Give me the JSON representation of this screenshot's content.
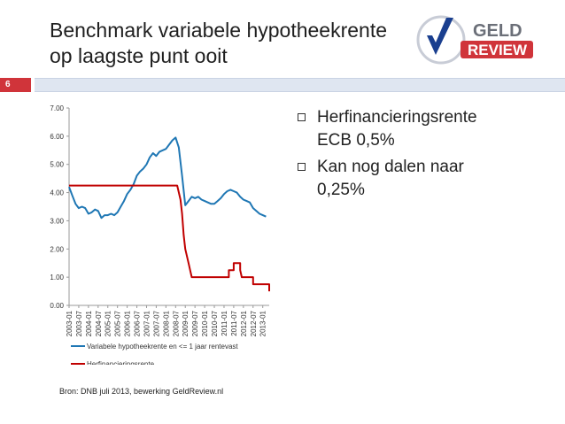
{
  "slide": {
    "title_line1": "Benchmark variabele hypotheekrente",
    "title_line2": "op laagste punt ooit",
    "number": "6",
    "source": "Bron: DNB juli 2013, bewerking GeldReview.nl",
    "bullets": [
      {
        "line1": "Herfinancieringsrente",
        "line2": "ECB 0,5%"
      },
      {
        "line1": "Kan nog dalen naar",
        "line2": "0,25%"
      }
    ]
  },
  "logo": {
    "top_text": "GELD",
    "bottom_text": "REVIEW",
    "accent": "#d0343a",
    "check_color": "#1a3f8f",
    "icon": "checkmark-icon"
  },
  "colors": {
    "series_blue": "#1f77b4",
    "series_red": "#c00000",
    "band_red": "#d0343a",
    "band_blue": "#dfe6f1"
  },
  "chart_data": {
    "type": "line",
    "ylim": [
      0,
      7
    ],
    "y_ticks": [
      "0.00",
      "1.00",
      "2.00",
      "3.00",
      "4.00",
      "5.00",
      "6.00",
      "7.00"
    ],
    "x_ticks": [
      "2003-01",
      "2003-07",
      "2004-01",
      "2004-07",
      "2005-01",
      "2005-07",
      "2006-01",
      "2006-07",
      "2007-01",
      "2007-07",
      "2008-01",
      "2008-07",
      "2009-01",
      "2009-07",
      "2010-01",
      "2010-07",
      "2011-01",
      "2011-07",
      "2012-01",
      "2012-07",
      "2013-01"
    ],
    "legend_placement": "bottom",
    "series": [
      {
        "name": "Variabele hypotheekrente en <= 1 jaar rentevast",
        "color": "#1f77b4",
        "points": [
          [
            "2003-01",
            4.2
          ],
          [
            "2003-03",
            3.9
          ],
          [
            "2003-05",
            3.6
          ],
          [
            "2003-07",
            3.45
          ],
          [
            "2003-09",
            3.5
          ],
          [
            "2003-11",
            3.45
          ],
          [
            "2004-01",
            3.25
          ],
          [
            "2004-03",
            3.3
          ],
          [
            "2004-05",
            3.4
          ],
          [
            "2004-07",
            3.35
          ],
          [
            "2004-09",
            3.1
          ],
          [
            "2004-11",
            3.2
          ],
          [
            "2005-01",
            3.2
          ],
          [
            "2005-03",
            3.25
          ],
          [
            "2005-05",
            3.2
          ],
          [
            "2005-07",
            3.3
          ],
          [
            "2005-09",
            3.5
          ],
          [
            "2005-11",
            3.7
          ],
          [
            "2006-01",
            3.95
          ],
          [
            "2006-03",
            4.1
          ],
          [
            "2006-05",
            4.3
          ],
          [
            "2006-07",
            4.6
          ],
          [
            "2006-09",
            4.75
          ],
          [
            "2006-11",
            4.85
          ],
          [
            "2007-01",
            5.0
          ],
          [
            "2007-03",
            5.25
          ],
          [
            "2007-05",
            5.4
          ],
          [
            "2007-07",
            5.3
          ],
          [
            "2007-09",
            5.45
          ],
          [
            "2007-11",
            5.5
          ],
          [
            "2008-01",
            5.55
          ],
          [
            "2008-03",
            5.7
          ],
          [
            "2008-05",
            5.85
          ],
          [
            "2008-07",
            5.95
          ],
          [
            "2008-09",
            5.6
          ],
          [
            "2008-11",
            4.6
          ],
          [
            "2009-01",
            3.55
          ],
          [
            "2009-03",
            3.7
          ],
          [
            "2009-05",
            3.85
          ],
          [
            "2009-07",
            3.8
          ],
          [
            "2009-09",
            3.85
          ],
          [
            "2009-11",
            3.75
          ],
          [
            "2010-01",
            3.7
          ],
          [
            "2010-03",
            3.65
          ],
          [
            "2010-05",
            3.6
          ],
          [
            "2010-07",
            3.6
          ],
          [
            "2010-09",
            3.7
          ],
          [
            "2010-11",
            3.8
          ],
          [
            "2011-01",
            3.95
          ],
          [
            "2011-03",
            4.05
          ],
          [
            "2011-05",
            4.1
          ],
          [
            "2011-07",
            4.05
          ],
          [
            "2011-09",
            4.0
          ],
          [
            "2011-11",
            3.85
          ],
          [
            "2012-01",
            3.75
          ],
          [
            "2012-03",
            3.7
          ],
          [
            "2012-05",
            3.65
          ],
          [
            "2012-07",
            3.45
          ],
          [
            "2012-09",
            3.35
          ],
          [
            "2012-11",
            3.25
          ],
          [
            "2013-01",
            3.2
          ],
          [
            "2013-03",
            3.15
          ]
        ]
      },
      {
        "name": "Herfinancieringsrente",
        "color": "#c00000",
        "points": [
          [
            "2003-01",
            4.25
          ],
          [
            "2008-08",
            4.25
          ],
          [
            "2008-10",
            3.75
          ],
          [
            "2008-11",
            3.25
          ],
          [
            "2008-12",
            2.5
          ],
          [
            "2009-01",
            2.0
          ],
          [
            "2009-03",
            1.5
          ],
          [
            "2009-04",
            1.25
          ],
          [
            "2009-05",
            1.0
          ],
          [
            "2011-04",
            1.0
          ],
          [
            "2011-04",
            1.25
          ],
          [
            "2011-07",
            1.25
          ],
          [
            "2011-07",
            1.5
          ],
          [
            "2011-11",
            1.5
          ],
          [
            "2011-11",
            1.25
          ],
          [
            "2011-12",
            1.0
          ],
          [
            "2012-07",
            1.0
          ],
          [
            "2012-07",
            0.75
          ],
          [
            "2013-05",
            0.75
          ],
          [
            "2013-05",
            0.5
          ]
        ]
      }
    ]
  }
}
